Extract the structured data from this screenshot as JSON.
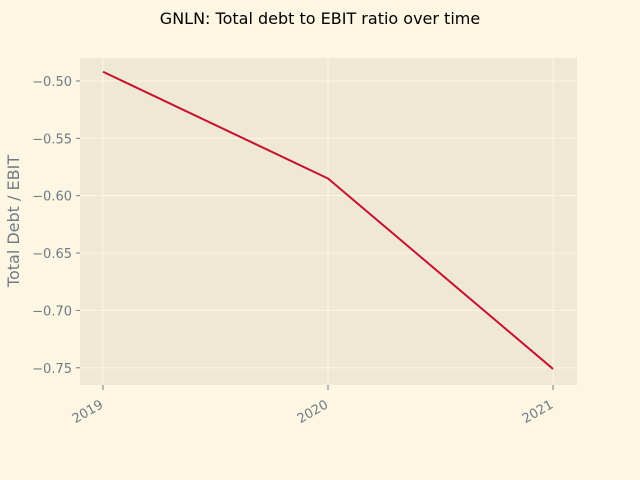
{
  "chart_data": {
    "type": "line",
    "title": "GNLN: Total debt to EBIT ratio over time",
    "xlabel": "",
    "ylabel": "Total Debt / EBIT",
    "categories": [
      "2019",
      "2020",
      "2021"
    ],
    "series": [
      {
        "values": [
          -0.492,
          -0.585,
          -0.751
        ]
      }
    ],
    "ylim": [
      -0.765,
      -0.48
    ],
    "yticks": [
      -0.5,
      -0.55,
      -0.6,
      -0.65,
      -0.7,
      -0.75
    ],
    "ytick_labels": [
      "−0.50",
      "−0.55",
      "−0.60",
      "−0.65",
      "−0.70",
      "−0.75"
    ],
    "grid": true,
    "colors": {
      "background": "#fdf6e3",
      "plot_area": "#eee8d5",
      "line": "#c8102e",
      "grid": "#fdf6e3",
      "text": "#6e7b85"
    }
  }
}
